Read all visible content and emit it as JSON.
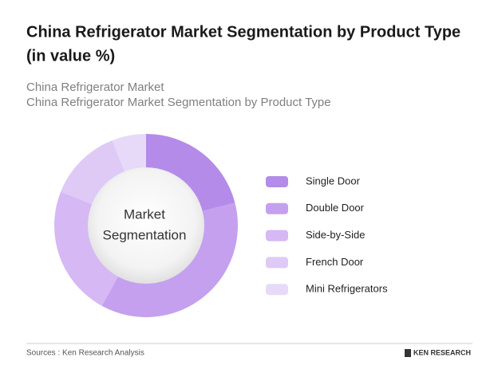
{
  "chart_data": {
    "type": "donut",
    "title": [
      "China Refrigerator Market Segmentation by Product Type",
      "(in value %)"
    ],
    "subtitle": [
      "China Refrigerator Market",
      "China Refrigerator Market Segmentation by Product Type"
    ],
    "center_label": [
      "Market",
      "Segmentation"
    ],
    "categories": [
      "Single Door",
      "Double Door",
      "Side-by-Side",
      "French Door",
      "Mini Refrigerators"
    ],
    "values": [
      21,
      37,
      23,
      13,
      6
    ],
    "colors": [
      "#b48be9",
      "#c5a0ef",
      "#d6b8f4",
      "#dfcaf6",
      "#e7daf8"
    ],
    "source": "Sources : Ken Research Analysis",
    "brand": "KEN RESEARCH"
  }
}
